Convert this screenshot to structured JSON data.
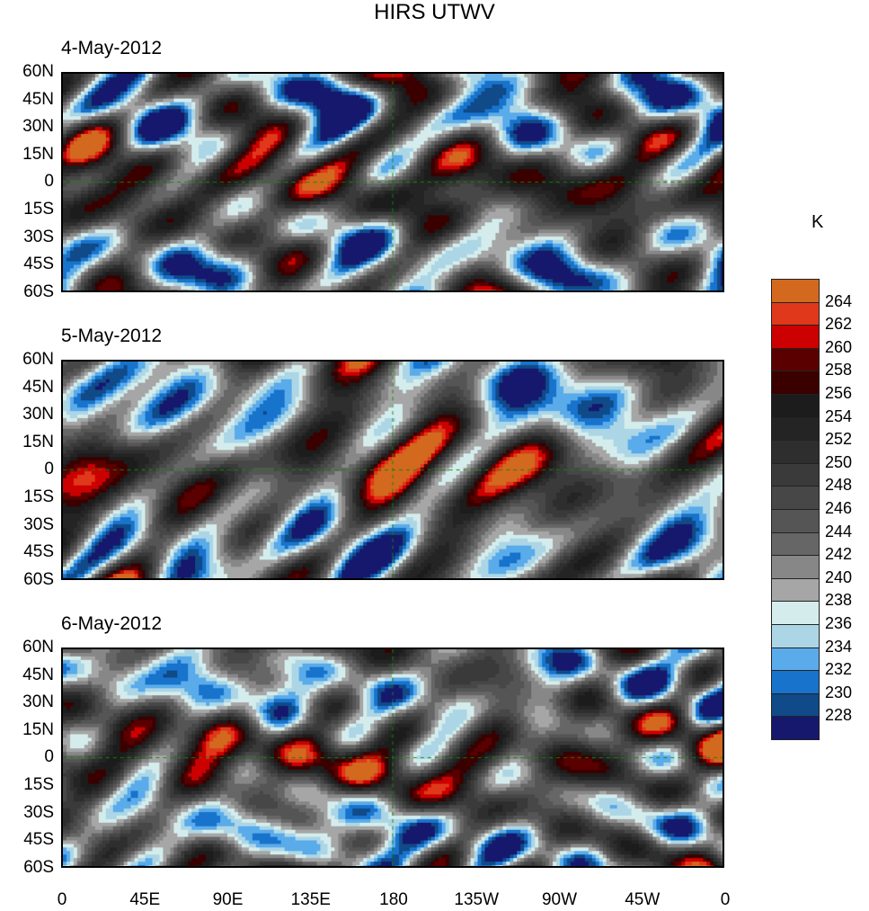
{
  "title": "HIRS UTWV",
  "panels": [
    {
      "date": "4-May-2012"
    },
    {
      "date": "5-May-2012"
    },
    {
      "date": "6-May-2012"
    }
  ],
  "lat_ticks": [
    "60N",
    "45N",
    "30N",
    "15N",
    "0",
    "15S",
    "30S",
    "45S",
    "60S"
  ],
  "lon_ticks": [
    "0",
    "45E",
    "90E",
    "135E",
    "180",
    "135W",
    "90W",
    "45W",
    "0"
  ],
  "colorbar": {
    "unit": "K",
    "labels": [
      "264",
      "262",
      "260",
      "258",
      "256",
      "254",
      "252",
      "250",
      "248",
      "246",
      "244",
      "242",
      "240",
      "238",
      "236",
      "234",
      "232",
      "230",
      "228"
    ],
    "colors": [
      "#d2691e",
      "#e0381a",
      "#cc0000",
      "#5a0000",
      "#3a0000",
      "#1c1c1c",
      "#242424",
      "#2e2e2e",
      "#3a3a3a",
      "#474747",
      "#555555",
      "#666666",
      "#878787",
      "#a6a6a6",
      "#d4ecec",
      "#acd6e6",
      "#5aabea",
      "#1873cc",
      "#104a88",
      "#16186e"
    ]
  },
  "coastline_color": "#0a8a0a"
}
